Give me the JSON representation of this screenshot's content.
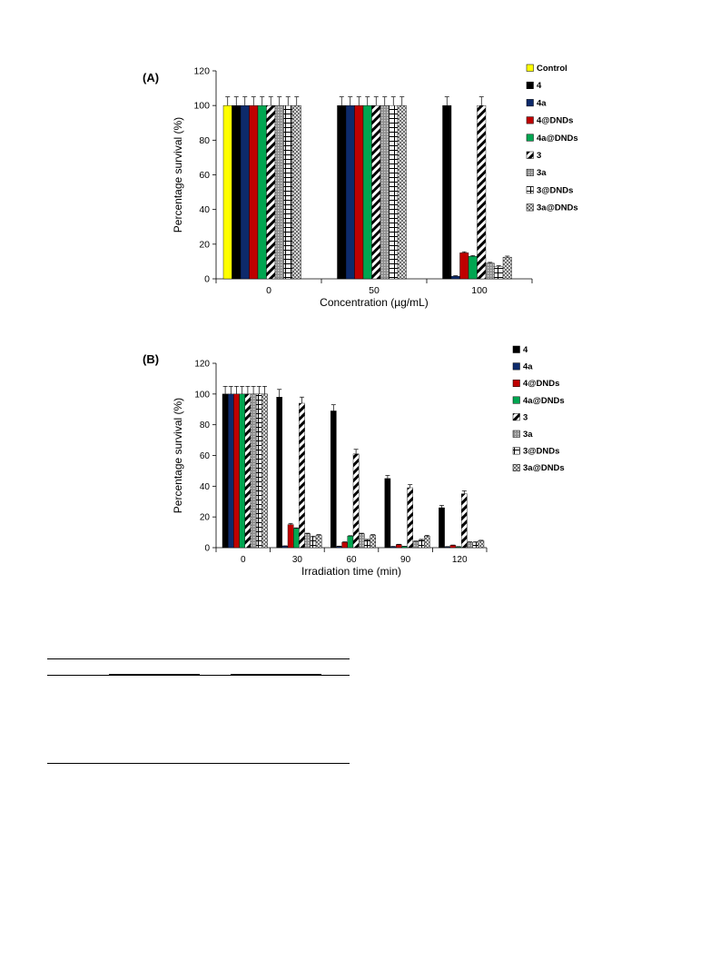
{
  "panels": {
    "a_label": "(A)",
    "b_label": "(B)"
  },
  "series_styles": {
    "Control": {
      "fill": "#ffff00",
      "pattern": "solid"
    },
    "4": {
      "fill": "#000000",
      "pattern": "solid"
    },
    "4a": {
      "fill": "#0d2a6b",
      "pattern": "solid"
    },
    "4@DNDs": {
      "fill": "#c00000",
      "pattern": "solid"
    },
    "4a@DNDs": {
      "fill": "#00a651",
      "pattern": "solid"
    },
    "3": {
      "fill": "#000000",
      "pattern": "diagonal-stripes"
    },
    "3a": {
      "fill": "#a6a6a6",
      "pattern": "grey-hatch"
    },
    "3@DNDs": {
      "fill": "#000000",
      "pattern": "bricks"
    },
    "3a@DNDs": {
      "fill": "#a6a6a6",
      "pattern": "checker"
    }
  },
  "chart_data": [
    {
      "type": "bar",
      "title": "",
      "xlabel": "Concentration (µg/mL)",
      "ylabel": "Percentage survival (%)",
      "ylim": [
        0,
        120
      ],
      "yticks": [
        0,
        20,
        40,
        60,
        80,
        100,
        120
      ],
      "categories": [
        "0",
        "50",
        "100"
      ],
      "legend_position": "right",
      "series": [
        {
          "name": "Control",
          "values": [
            100,
            null,
            null
          ],
          "errors": [
            5,
            null,
            null
          ]
        },
        {
          "name": "4",
          "values": [
            100,
            100,
            100
          ],
          "errors": [
            5,
            5,
            5
          ]
        },
        {
          "name": "4a",
          "values": [
            100,
            100,
            1.5
          ],
          "errors": [
            5,
            5,
            0.3
          ]
        },
        {
          "name": "4@DNDs",
          "values": [
            100,
            100,
            15
          ],
          "errors": [
            5,
            5,
            0.6
          ]
        },
        {
          "name": "4a@DNDs",
          "values": [
            100,
            100,
            13
          ],
          "errors": [
            5,
            5,
            0.4
          ]
        },
        {
          "name": "3",
          "values": [
            100,
            100,
            100
          ],
          "errors": [
            5,
            5,
            5
          ]
        },
        {
          "name": "3a",
          "values": [
            100,
            100,
            9
          ],
          "errors": [
            5,
            5,
            0.5
          ]
        },
        {
          "name": "3@DNDs",
          "values": [
            100,
            100,
            7
          ],
          "errors": [
            5,
            5,
            0.6
          ]
        },
        {
          "name": "3a@DNDs",
          "values": [
            100,
            100,
            12.5
          ],
          "errors": [
            5,
            5,
            0.6
          ]
        }
      ]
    },
    {
      "type": "bar",
      "title": "",
      "xlabel": "Irradiation time (min)",
      "ylabel": "Percentage survival (%)",
      "ylim": [
        0,
        120
      ],
      "yticks": [
        0,
        20,
        40,
        60,
        80,
        100,
        120
      ],
      "categories": [
        "0",
        "30",
        "60",
        "90",
        "120"
      ],
      "legend_position": "right",
      "series": [
        {
          "name": "4",
          "values": [
            100,
            98,
            89,
            45,
            26
          ],
          "errors": [
            5,
            5,
            4,
            2,
            1.5
          ]
        },
        {
          "name": "4a",
          "values": [
            100,
            1,
            0.8,
            0.6,
            0.5
          ],
          "errors": [
            5,
            0.2,
            0.2,
            0.2,
            0.2
          ]
        },
        {
          "name": "4@DNDs",
          "values": [
            100,
            15,
            3.5,
            2,
            1.5
          ],
          "errors": [
            5,
            0.8,
            0.3,
            0.2,
            0.2
          ]
        },
        {
          "name": "4a@DNDs",
          "values": [
            100,
            12.5,
            7.5,
            0.7,
            0.5
          ],
          "errors": [
            5,
            0.4,
            0.3,
            0.2,
            0.2
          ]
        },
        {
          "name": "3",
          "values": [
            100,
            94,
            61,
            39,
            35
          ],
          "errors": [
            5,
            4,
            3,
            2,
            2
          ]
        },
        {
          "name": "3a",
          "values": [
            100,
            9,
            9,
            4,
            3.5
          ],
          "errors": [
            5,
            0.4,
            0.4,
            0.3,
            0.3
          ]
        },
        {
          "name": "3@DNDs",
          "values": [
            100,
            7,
            5,
            5,
            3.5
          ],
          "errors": [
            5,
            0.5,
            0.4,
            0.4,
            0.3
          ]
        },
        {
          "name": "3a@DNDs",
          "values": [
            100,
            8,
            8,
            7.5,
            4.5
          ],
          "errors": [
            5,
            0.5,
            0.5,
            0.5,
            0.3
          ]
        }
      ]
    }
  ]
}
